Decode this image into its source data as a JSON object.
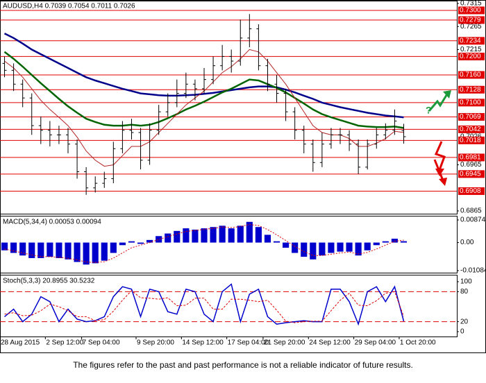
{
  "chart_data": [
    {
      "type": "ohlc",
      "title": "AUDUSD,H4  0.7039 0.7054 0.7011 0.7026",
      "categories": [
        "28 Aug 2015",
        null,
        null,
        null,
        null,
        "2 Sep 12:00",
        null,
        null,
        null,
        "7 Sep 04:00",
        null,
        null,
        null,
        null,
        null,
        "9 Sep 20:00",
        null,
        null,
        null,
        null,
        "14 Sep 12:00",
        null,
        null,
        null,
        null,
        "17 Sep 04:00",
        null,
        null,
        null,
        "21 Sep 20:00",
        null,
        null,
        null,
        null,
        "24 Sep 12:00",
        null,
        null,
        null,
        null,
        "29 Sep 04:00",
        null,
        null,
        null,
        null,
        "1 Oct 20:00"
      ],
      "open": [
        0.7185,
        0.717,
        0.714,
        0.711,
        0.705,
        0.704,
        0.703,
        0.703,
        0.701,
        0.695,
        0.6915,
        0.6925,
        0.6935,
        0.7,
        0.704,
        0.7035,
        0.6975,
        0.704,
        0.708,
        0.71,
        0.712,
        0.714,
        0.713,
        0.715,
        0.718,
        0.72,
        0.719,
        0.724,
        0.726,
        0.718,
        0.714,
        0.712,
        0.708,
        0.704,
        0.701,
        0.697,
        0.701,
        0.703,
        0.703,
        0.701,
        0.696,
        0.701,
        0.703,
        0.704,
        0.7039
      ],
      "high": [
        0.72,
        0.7185,
        0.715,
        0.712,
        0.707,
        0.706,
        0.705,
        0.7045,
        0.702,
        0.696,
        0.694,
        0.695,
        0.7015,
        0.706,
        0.7065,
        0.7045,
        0.7055,
        0.7095,
        0.712,
        0.715,
        0.7165,
        0.715,
        0.7175,
        0.72,
        0.7225,
        0.7215,
        0.728,
        0.7292,
        0.727,
        0.7195,
        0.716,
        0.713,
        0.709,
        0.705,
        0.702,
        0.7035,
        0.7045,
        0.7045,
        0.704,
        0.702,
        0.702,
        0.7045,
        0.7055,
        0.7085,
        0.7054
      ],
      "low": [
        0.7155,
        0.7125,
        0.709,
        0.703,
        0.701,
        0.7005,
        0.701,
        0.699,
        0.6935,
        0.69,
        0.6905,
        0.6915,
        0.6925,
        0.699,
        0.702,
        0.6955,
        0.6965,
        0.703,
        0.707,
        0.709,
        0.711,
        0.7105,
        0.712,
        0.714,
        0.717,
        0.7165,
        0.718,
        0.722,
        0.717,
        0.7125,
        0.71,
        0.706,
        0.702,
        0.699,
        0.695,
        0.696,
        0.7,
        0.701,
        0.6995,
        0.6945,
        0.6955,
        0.7,
        0.702,
        0.703,
        0.7011
      ],
      "close": [
        0.717,
        0.714,
        0.711,
        0.705,
        0.704,
        0.703,
        0.703,
        0.701,
        0.695,
        0.6915,
        0.6925,
        0.6935,
        0.7,
        0.704,
        0.7035,
        0.6975,
        0.704,
        0.708,
        0.71,
        0.712,
        0.714,
        0.713,
        0.715,
        0.718,
        0.72,
        0.719,
        0.724,
        0.726,
        0.718,
        0.714,
        0.712,
        0.708,
        0.704,
        0.701,
        0.697,
        0.701,
        0.703,
        0.703,
        0.701,
        0.696,
        0.701,
        0.703,
        0.704,
        0.706,
        0.7026
      ],
      "bar_color": "#000000",
      "series": [
        {
          "color": "#00008b",
          "values": [
            0.725,
            0.724,
            0.7228,
            0.7215,
            0.7205,
            0.7195,
            0.7185,
            0.7175,
            0.7165,
            0.7155,
            0.7148,
            0.7142,
            0.7136,
            0.713,
            0.7125,
            0.712,
            0.7118,
            0.7116,
            0.7115,
            0.7115,
            0.7116,
            0.7117,
            0.7119,
            0.7121,
            0.7124,
            0.7127,
            0.713,
            0.7133,
            0.7135,
            0.7135,
            0.7133,
            0.7128,
            0.7122,
            0.7115,
            0.7108,
            0.71,
            0.7095,
            0.709,
            0.7086,
            0.7082,
            0.7078,
            0.7075,
            0.7072,
            0.707,
            0.7068
          ]
        },
        {
          "color": "#006400",
          "values": [
            0.721,
            0.7195,
            0.7178,
            0.716,
            0.7142,
            0.7125,
            0.7108,
            0.7092,
            0.7078,
            0.7065,
            0.7058,
            0.7052,
            0.705,
            0.705,
            0.7052,
            0.705,
            0.7052,
            0.7058,
            0.7066,
            0.7075,
            0.7085,
            0.7093,
            0.7102,
            0.7112,
            0.7122,
            0.713,
            0.714,
            0.715,
            0.7148,
            0.714,
            0.7132,
            0.7122,
            0.711,
            0.7098,
            0.7085,
            0.7075,
            0.7068,
            0.7062,
            0.7056,
            0.705,
            0.7048,
            0.7047,
            0.7047,
            0.7048,
            0.7045
          ]
        },
        {
          "color": "#b22222",
          "values": [
            0.719,
            0.7175,
            0.7155,
            0.713,
            0.7105,
            0.7085,
            0.7068,
            0.705,
            0.7025,
            0.6995,
            0.6975,
            0.6962,
            0.6965,
            0.6985,
            0.7005,
            0.7005,
            0.7015,
            0.7035,
            0.7055,
            0.7075,
            0.7095,
            0.711,
            0.7125,
            0.7145,
            0.7165,
            0.7178,
            0.7195,
            0.7215,
            0.721,
            0.719,
            0.7165,
            0.714,
            0.711,
            0.708,
            0.705,
            0.7035,
            0.703,
            0.703,
            0.7022,
            0.7005,
            0.7005,
            0.7012,
            0.7022,
            0.7038,
            0.7035
          ]
        }
      ],
      "levels": [
        {
          "value": 0.73,
          "label": "0.7300"
        },
        {
          "value": 0.7279,
          "label": "0.7279"
        },
        {
          "value": 0.7234,
          "label": "0.7234"
        },
        {
          "value": 0.72,
          "label": "0.7200"
        },
        {
          "value": 0.716,
          "label": "0.7160"
        },
        {
          "value": 0.7128,
          "label": "0.7128"
        },
        {
          "value": 0.71,
          "label": "0.7100"
        },
        {
          "value": 0.7069,
          "label": "0.7069"
        },
        {
          "value": 0.7042,
          "label": "0.7042"
        },
        {
          "value": 0.7018,
          "label": "0.7018"
        },
        {
          "value": 0.6981,
          "label": "0.6981"
        },
        {
          "value": 0.6945,
          "label": "0.6945"
        },
        {
          "value": 0.6908,
          "label": "0.6908"
        }
      ],
      "level_color": "#e00000",
      "ylim": [
        0.6859,
        0.7321
      ],
      "yticks": [
        0.7315,
        0.7265,
        0.7215,
        0.6965,
        0.6865
      ]
    },
    {
      "type": "macd",
      "title": "MACD(5,34,4) 0.00053 0.00094",
      "color": "#0000cc",
      "values": [
        -0.003,
        -0.004,
        -0.005,
        -0.006,
        -0.006,
        -0.0055,
        -0.006,
        -0.0065,
        -0.0075,
        -0.0085,
        -0.008,
        -0.007,
        -0.004,
        -0.001,
        0.0005,
        -0.0005,
        0.001,
        0.0025,
        0.0035,
        0.0045,
        0.0055,
        0.005,
        0.0055,
        0.006,
        0.0065,
        0.0055,
        0.0065,
        0.008,
        0.006,
        0.003,
        0.0005,
        -0.002,
        -0.004,
        -0.0055,
        -0.0065,
        -0.005,
        -0.004,
        -0.0035,
        -0.0035,
        -0.005,
        -0.003,
        -0.001,
        0.0005,
        0.0015,
        0.00053
      ],
      "signal": {
        "color": "#e00000",
        "values": [
          -0.0025,
          -0.0032,
          -0.004,
          -0.0048,
          -0.0054,
          -0.0055,
          -0.0057,
          -0.0061,
          -0.0067,
          -0.0075,
          -0.0077,
          -0.0074,
          -0.006,
          -0.004,
          -0.002,
          -0.001,
          0.0,
          0.0012,
          0.0023,
          0.0033,
          0.0043,
          0.0047,
          0.0051,
          0.0055,
          0.006,
          0.0058,
          0.0062,
          0.007,
          0.0066,
          0.005,
          0.003,
          0.0008,
          -0.0015,
          -0.0035,
          -0.005,
          -0.005,
          -0.0045,
          -0.004,
          -0.0037,
          -0.0044,
          -0.0038,
          -0.0025,
          -0.001,
          0.0005,
          0.00094
        ]
      },
      "ylim": [
        -0.01164,
        0.01035
      ],
      "yticks": [
        0.00874,
        {
          "value": 0,
          "label": "0.00"
        },
        -0.01084
      ]
    },
    {
      "type": "stoch",
      "title": "Stoch(5,3,3) 20.8955 30.5232",
      "series": [
        {
          "color": "#0000cc",
          "values": [
            30,
            45,
            20,
            35,
            70,
            60,
            20,
            45,
            25,
            20,
            22,
            30,
            70,
            90,
            85,
            30,
            85,
            80,
            40,
            35,
            85,
            80,
            35,
            20,
            80,
            95,
            20,
            75,
            85,
            30,
            15,
            18,
            20,
            22,
            20,
            20,
            85,
            85,
            60,
            15,
            80,
            90,
            60,
            90,
            20.8955
          ]
        },
        {
          "color": "#e00000",
          "values": [
            35,
            38,
            32,
            33,
            42,
            55,
            50,
            42,
            30,
            30,
            22,
            24,
            41,
            63,
            82,
            68,
            67,
            65,
            68,
            52,
            53,
            67,
            67,
            45,
            45,
            65,
            65,
            63,
            60,
            63,
            43,
            21,
            18,
            20,
            21,
            21,
            42,
            63,
            77,
            53,
            52,
            62,
            77,
            80,
            30.5232
          ]
        }
      ],
      "levels": [
        80,
        20
      ],
      "level_color": "#e00000",
      "ylim": [
        -9.7,
        113.9
      ],
      "yticks": [
        100,
        80,
        20,
        0
      ]
    }
  ],
  "footer": "The figures refer to the past and past performance is not a reliable indicator of future results."
}
